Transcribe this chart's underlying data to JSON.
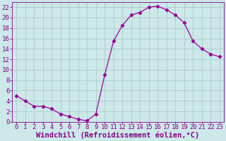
{
  "x": [
    0,
    1,
    2,
    3,
    4,
    5,
    6,
    7,
    8,
    9,
    10,
    11,
    12,
    13,
    14,
    15,
    16,
    17,
    18,
    19,
    20,
    21,
    22,
    23
  ],
  "y": [
    5,
    4,
    3,
    3,
    2.5,
    1.5,
    1,
    0.5,
    0.2,
    1.5,
    9,
    15.5,
    18.5,
    20.5,
    21,
    22,
    22.2,
    21.5,
    20.5,
    19,
    15.5,
    14,
    13,
    12.5
  ],
  "line_color": "#990099",
  "marker": "D",
  "marker_size": 2.2,
  "bg_color": "#cce8e8",
  "grid_color": "#aacccc",
  "xlabel": "Windchill (Refroidissement éolien,°C)",
  "xlim": [
    -0.5,
    23.5
  ],
  "ylim": [
    0,
    23
  ],
  "yticks": [
    0,
    2,
    4,
    6,
    8,
    10,
    12,
    14,
    16,
    18,
    20,
    22
  ],
  "xticks": [
    0,
    1,
    2,
    3,
    4,
    5,
    6,
    7,
    8,
    9,
    10,
    11,
    12,
    13,
    14,
    15,
    16,
    17,
    18,
    19,
    20,
    21,
    22,
    23
  ],
  "tick_color": "#880088",
  "label_color": "#880088",
  "font_size": 6.5,
  "xlabel_fontsize": 7.5
}
